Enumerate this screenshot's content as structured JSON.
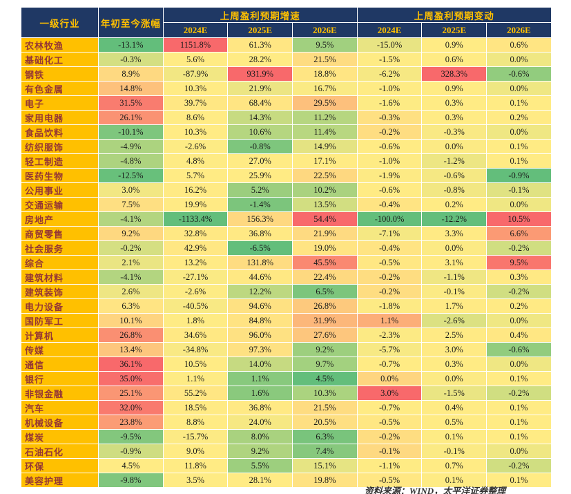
{
  "chart_data": {
    "type": "heatmap",
    "unit": "%",
    "header": {
      "industry": "一级行业",
      "ytd": "年初至今涨幅",
      "growth_group": "上周盈利预期增速",
      "change_group": "上周盈利预期变动",
      "years": [
        "2024E",
        "2025E",
        "2026E"
      ]
    },
    "columns": [
      "年初至今涨幅",
      "上周盈利预期增速 2024E",
      "上周盈利预期增速 2025E",
      "上周盈利预期增速 2026E",
      "上周盈利预期变动 2024E",
      "上周盈利预期变动 2025E",
      "上周盈利预期变动 2026E"
    ],
    "color_scale": {
      "low": "#63BE7B",
      "mid": "#FFEB84",
      "high": "#F8696B",
      "midpoint": "per-column median",
      "note": "green = lowest value, yellow = median, red = highest value, linear interpolation per column"
    },
    "rows": [
      {
        "industry": "农林牧渔",
        "values": [
          -13.1,
          1151.8,
          61.3,
          9.5,
          -15.0,
          0.9,
          0.6
        ]
      },
      {
        "industry": "基础化工",
        "values": [
          -0.3,
          5.6,
          28.2,
          21.5,
          -1.5,
          0.6,
          0.0
        ]
      },
      {
        "industry": "钢铁",
        "values": [
          8.9,
          -87.9,
          931.9,
          18.8,
          -6.2,
          328.3,
          -0.6
        ]
      },
      {
        "industry": "有色金属",
        "values": [
          14.8,
          10.3,
          21.9,
          16.7,
          -1.0,
          0.9,
          0.0
        ]
      },
      {
        "industry": "电子",
        "values": [
          31.5,
          39.7,
          68.4,
          29.5,
          -1.6,
          0.3,
          0.1
        ]
      },
      {
        "industry": "家用电器",
        "values": [
          26.1,
          8.6,
          14.3,
          11.2,
          -0.3,
          0.3,
          0.2
        ]
      },
      {
        "industry": "食品饮料",
        "values": [
          -10.1,
          10.3,
          10.6,
          11.4,
          -0.2,
          -0.3,
          0.0
        ]
      },
      {
        "industry": "纺织服饰",
        "values": [
          -4.9,
          -2.6,
          -0.8,
          14.9,
          -0.6,
          0.0,
          0.1
        ]
      },
      {
        "industry": "轻工制造",
        "values": [
          -4.8,
          4.8,
          27.0,
          17.1,
          -1.0,
          -1.2,
          0.1
        ]
      },
      {
        "industry": "医药生物",
        "values": [
          -12.5,
          5.7,
          25.9,
          22.5,
          -1.9,
          -0.6,
          -0.9
        ]
      },
      {
        "industry": "公用事业",
        "values": [
          3.0,
          16.2,
          5.2,
          10.2,
          -0.6,
          -0.8,
          -0.1
        ]
      },
      {
        "industry": "交通运输",
        "values": [
          7.5,
          19.9,
          -1.4,
          13.5,
          -0.4,
          0.2,
          0.0
        ]
      },
      {
        "industry": "房地产",
        "values": [
          -4.1,
          -1133.4,
          156.3,
          54.4,
          -100.0,
          -12.2,
          10.5
        ]
      },
      {
        "industry": "商贸零售",
        "values": [
          9.2,
          32.8,
          36.8,
          21.9,
          -7.1,
          3.3,
          6.6
        ]
      },
      {
        "industry": "社会服务",
        "values": [
          -0.2,
          42.9,
          -6.5,
          19.0,
          -0.4,
          0.0,
          -0.2
        ]
      },
      {
        "industry": "综合",
        "values": [
          2.1,
          13.2,
          131.8,
          45.5,
          -0.5,
          3.1,
          9.5
        ]
      },
      {
        "industry": "建筑材料",
        "values": [
          -4.1,
          -27.1,
          44.6,
          22.4,
          -0.2,
          -1.1,
          0.3
        ]
      },
      {
        "industry": "建筑装饰",
        "values": [
          2.6,
          -2.6,
          12.2,
          6.5,
          -0.2,
          -0.1,
          -0.2
        ]
      },
      {
        "industry": "电力设备",
        "values": [
          6.3,
          -40.5,
          94.6,
          26.8,
          -1.8,
          1.7,
          0.2
        ]
      },
      {
        "industry": "国防军工",
        "values": [
          10.1,
          1.8,
          84.8,
          31.9,
          1.1,
          -2.6,
          0.0
        ]
      },
      {
        "industry": "计算机",
        "values": [
          26.8,
          34.6,
          96.0,
          27.6,
          -2.3,
          2.5,
          0.4
        ]
      },
      {
        "industry": "传媒",
        "values": [
          13.4,
          -34.8,
          97.3,
          9.2,
          -5.7,
          3.0,
          -0.6
        ]
      },
      {
        "industry": "通信",
        "values": [
          36.1,
          10.5,
          14.0,
          9.7,
          -0.7,
          0.3,
          0.0
        ]
      },
      {
        "industry": "银行",
        "values": [
          35.0,
          1.1,
          1.1,
          4.5,
          0.0,
          0.0,
          0.1
        ]
      },
      {
        "industry": "非银金融",
        "values": [
          25.1,
          55.2,
          1.6,
          10.3,
          3.0,
          -1.5,
          -0.2
        ]
      },
      {
        "industry": "汽车",
        "values": [
          32.0,
          18.5,
          36.8,
          21.5,
          -0.7,
          0.4,
          0.1
        ]
      },
      {
        "industry": "机械设备",
        "values": [
          23.8,
          8.8,
          24.0,
          20.5,
          -0.5,
          0.5,
          0.1
        ]
      },
      {
        "industry": "煤炭",
        "values": [
          -9.5,
          -15.7,
          8.0,
          6.3,
          -0.2,
          0.1,
          0.1
        ]
      },
      {
        "industry": "石油石化",
        "values": [
          -0.9,
          9.0,
          9.2,
          7.4,
          -0.1,
          -0.1,
          0.0
        ]
      },
      {
        "industry": "环保",
        "values": [
          4.5,
          11.8,
          5.5,
          15.1,
          -1.1,
          0.7,
          -0.2
        ]
      },
      {
        "industry": "美容护理",
        "values": [
          -9.8,
          3.5,
          28.1,
          19.8,
          -0.5,
          0.1,
          0.1
        ]
      }
    ]
  },
  "colors": {
    "header_bg": "#1F3864",
    "header_text": "#FFC000",
    "industry_bg": "#FFC000",
    "industry_text": "#953735",
    "scale_low": "#63BE7B",
    "scale_mid": "#FFEB84",
    "scale_high": "#F8696B"
  },
  "caption": {
    "text": "资料来源：WIND，太平洋证券整理"
  }
}
